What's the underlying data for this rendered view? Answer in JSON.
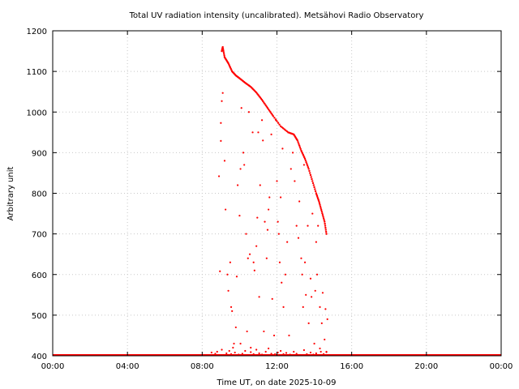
{
  "chart_data": {
    "type": "scatter",
    "title": "Total UV radiation intensity (uncalibrated). Metsähovi Radio Observatory",
    "xlabel": "Time UT, on date 2025-10-09",
    "ylabel": "Arbitrary unit",
    "xlim": [
      0,
      24
    ],
    "ylim": [
      400,
      1200
    ],
    "x_ticks": [
      0,
      4,
      8,
      12,
      16,
      20,
      24
    ],
    "x_tick_labels": [
      "00:00",
      "04:00",
      "08:00",
      "12:00",
      "16:00",
      "20:00",
      "00:00"
    ],
    "y_ticks": [
      400,
      500,
      600,
      700,
      800,
      900,
      1000,
      1100,
      1200
    ],
    "y_tick_labels": [
      "400",
      "500",
      "600",
      "700",
      "800",
      "900",
      "1000",
      "1100",
      "1200"
    ],
    "grid": true,
    "series_color": "#ff0000",
    "baseline": {
      "value": 400,
      "x_range": [
        0,
        24
      ]
    },
    "envelope": [
      [
        9.05,
        1150
      ],
      [
        9.1,
        1160
      ],
      [
        9.2,
        1135
      ],
      [
        9.4,
        1120
      ],
      [
        9.6,
        1100
      ],
      [
        9.8,
        1090
      ],
      [
        10.0,
        1083
      ],
      [
        10.3,
        1072
      ],
      [
        10.6,
        1062
      ],
      [
        10.9,
        1048
      ],
      [
        11.2,
        1030
      ],
      [
        11.5,
        1010
      ],
      [
        11.8,
        990
      ],
      [
        12.2,
        965
      ],
      [
        12.6,
        950
      ],
      [
        12.9,
        945
      ],
      [
        13.1,
        930
      ],
      [
        13.3,
        905
      ],
      [
        13.5,
        885
      ],
      [
        13.7,
        860
      ],
      [
        13.9,
        830
      ],
      [
        14.1,
        800
      ],
      [
        14.25,
        780
      ],
      [
        14.4,
        755
      ],
      [
        14.55,
        730
      ],
      [
        14.65,
        700
      ]
    ],
    "scatter": [
      [
        8.8,
        410
      ],
      [
        8.95,
        608
      ],
      [
        8.9,
        842
      ],
      [
        9.0,
        973
      ],
      [
        9.0,
        929
      ],
      [
        9.05,
        1027
      ],
      [
        9.1,
        1047
      ],
      [
        9.2,
        880
      ],
      [
        9.25,
        760
      ],
      [
        9.35,
        600
      ],
      [
        9.4,
        560
      ],
      [
        9.5,
        630
      ],
      [
        9.55,
        520
      ],
      [
        9.6,
        510
      ],
      [
        9.7,
        430
      ],
      [
        9.8,
        470
      ],
      [
        9.85,
        595
      ],
      [
        9.9,
        820
      ],
      [
        10.0,
        745
      ],
      [
        10.05,
        860
      ],
      [
        10.1,
        1010
      ],
      [
        10.2,
        900
      ],
      [
        10.25,
        870
      ],
      [
        10.35,
        700
      ],
      [
        10.4,
        460
      ],
      [
        10.45,
        640
      ],
      [
        10.5,
        1000
      ],
      [
        10.55,
        650
      ],
      [
        10.6,
        420
      ],
      [
        10.7,
        950
      ],
      [
        10.75,
        630
      ],
      [
        10.8,
        610
      ],
      [
        10.9,
        670
      ],
      [
        10.95,
        740
      ],
      [
        11.0,
        950
      ],
      [
        11.05,
        545
      ],
      [
        11.1,
        820
      ],
      [
        11.2,
        980
      ],
      [
        11.25,
        930
      ],
      [
        11.3,
        460
      ],
      [
        11.35,
        730
      ],
      [
        11.45,
        640
      ],
      [
        11.5,
        710
      ],
      [
        11.55,
        760
      ],
      [
        11.6,
        790
      ],
      [
        11.7,
        945
      ],
      [
        11.75,
        540
      ],
      [
        11.85,
        450
      ],
      [
        11.95,
        980
      ],
      [
        12.0,
        830
      ],
      [
        12.05,
        730
      ],
      [
        12.1,
        700
      ],
      [
        12.15,
        630
      ],
      [
        12.2,
        790
      ],
      [
        12.25,
        580
      ],
      [
        12.3,
        910
      ],
      [
        12.35,
        520
      ],
      [
        12.45,
        600
      ],
      [
        12.55,
        680
      ],
      [
        12.65,
        450
      ],
      [
        12.75,
        860
      ],
      [
        12.85,
        900
      ],
      [
        12.95,
        830
      ],
      [
        13.05,
        720
      ],
      [
        13.15,
        690
      ],
      [
        13.2,
        780
      ],
      [
        13.3,
        640
      ],
      [
        13.35,
        600
      ],
      [
        13.4,
        520
      ],
      [
        13.45,
        870
      ],
      [
        13.5,
        630
      ],
      [
        13.55,
        550
      ],
      [
        13.65,
        720
      ],
      [
        13.7,
        480
      ],
      [
        13.8,
        590
      ],
      [
        13.85,
        545
      ],
      [
        13.9,
        750
      ],
      [
        14.0,
        430
      ],
      [
        14.05,
        560
      ],
      [
        14.1,
        680
      ],
      [
        14.15,
        600
      ],
      [
        14.2,
        720
      ],
      [
        14.3,
        520
      ],
      [
        14.35,
        410
      ],
      [
        14.4,
        480
      ],
      [
        14.45,
        555
      ],
      [
        14.55,
        440
      ],
      [
        14.6,
        515
      ],
      [
        14.65,
        410
      ],
      [
        14.7,
        490
      ]
    ],
    "near_baseline": [
      [
        8.5,
        408
      ],
      [
        8.7,
        405
      ],
      [
        9.05,
        415
      ],
      [
        9.15,
        402
      ],
      [
        9.3,
        406
      ],
      [
        9.45,
        412
      ],
      [
        9.55,
        404
      ],
      [
        9.65,
        420
      ],
      [
        9.75,
        408
      ],
      [
        9.95,
        403
      ],
      [
        10.05,
        430
      ],
      [
        10.15,
        405
      ],
      [
        10.3,
        412
      ],
      [
        10.45,
        402
      ],
      [
        10.6,
        409
      ],
      [
        10.75,
        404
      ],
      [
        10.9,
        415
      ],
      [
        11.05,
        406
      ],
      [
        11.2,
        403
      ],
      [
        11.4,
        410
      ],
      [
        11.55,
        418
      ],
      [
        11.7,
        405
      ],
      [
        11.9,
        404
      ],
      [
        12.05,
        408
      ],
      [
        12.2,
        412
      ],
      [
        12.35,
        404
      ],
      [
        12.5,
        407
      ],
      [
        12.7,
        403
      ],
      [
        12.9,
        410
      ],
      [
        13.05,
        405
      ],
      [
        13.25,
        402
      ],
      [
        13.45,
        414
      ],
      [
        13.6,
        404
      ],
      [
        13.8,
        408
      ],
      [
        13.95,
        403
      ],
      [
        14.1,
        406
      ],
      [
        14.3,
        418
      ],
      [
        14.5,
        404
      ],
      [
        14.65,
        409
      ],
      [
        14.8,
        402
      ]
    ]
  }
}
